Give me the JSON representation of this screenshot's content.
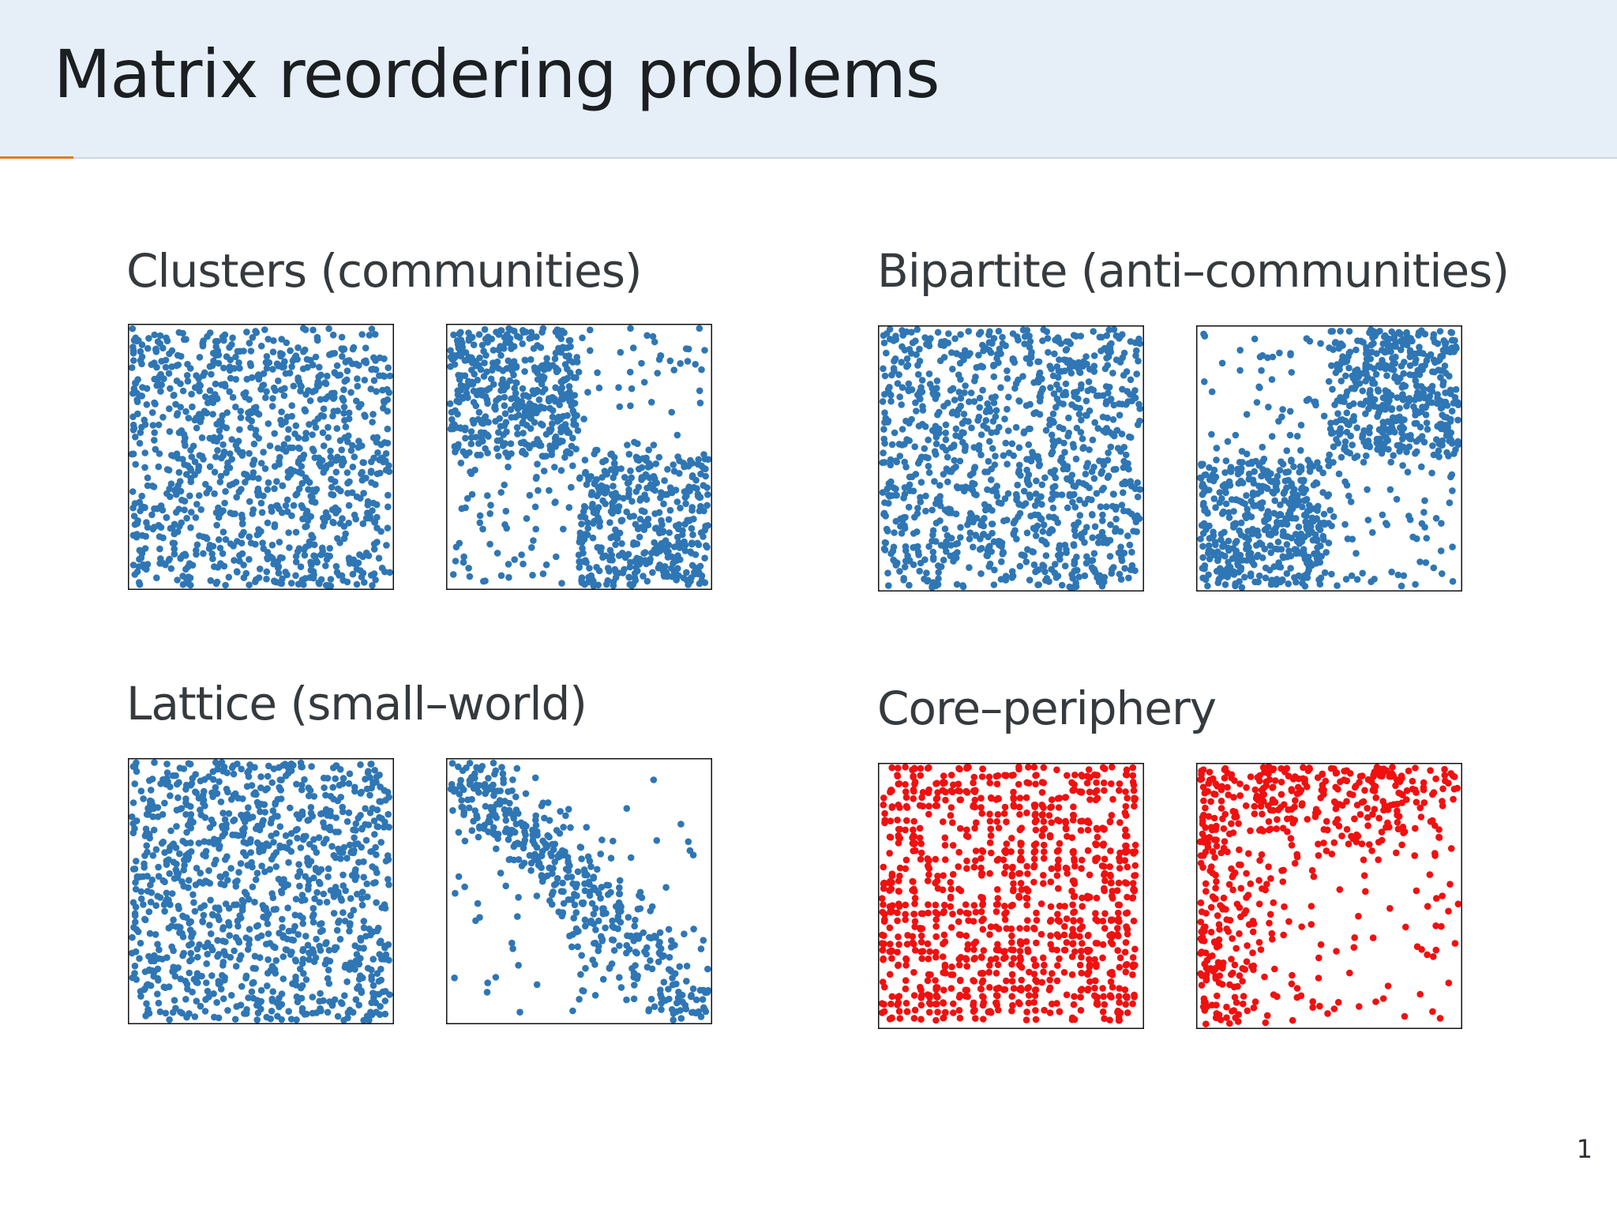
{
  "slide": {
    "title": "Matrix reordering problems",
    "page_number": "1"
  },
  "panels": [
    {
      "title": "Clusters (communities)",
      "color": "#2f76b4",
      "patterns": [
        "random",
        "clusters"
      ]
    },
    {
      "title": "Bipartite (anti–communities)",
      "color": "#2f76b4",
      "patterns": [
        "random",
        "bipartite"
      ]
    },
    {
      "title": "Lattice (small–world)",
      "color": "#2f76b4",
      "patterns": [
        "random",
        "lattice"
      ]
    },
    {
      "title": "Core–periphery",
      "color": "#f01010",
      "patterns": [
        "random-grid",
        "core-periphery"
      ]
    }
  ]
}
